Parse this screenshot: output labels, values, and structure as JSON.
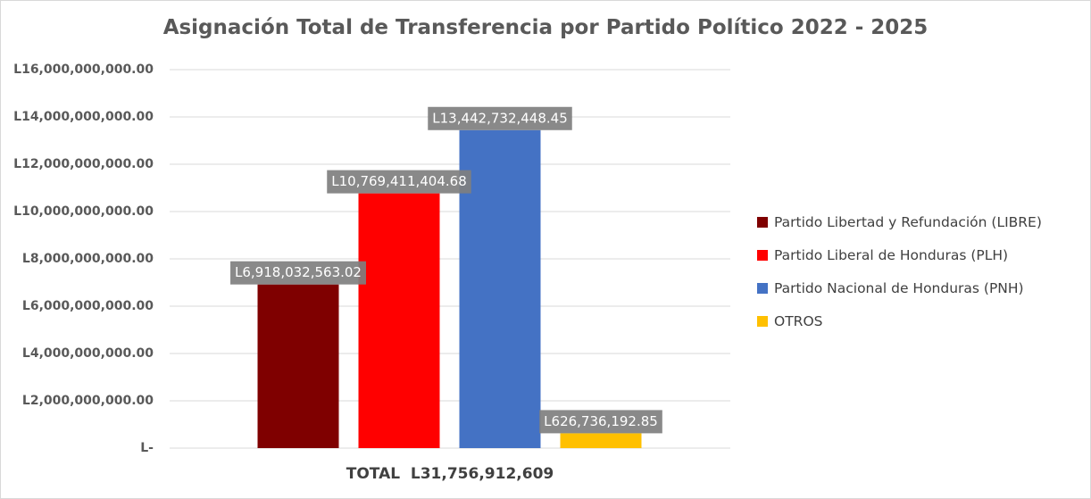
{
  "chart_data": {
    "type": "bar",
    "title": "Asignación Total de Transferencia por Partido Político 2022 -  2025",
    "xlabel": "TOTAL  L31,756,912,609",
    "ylabel": "",
    "ylim": [
      0,
      16000000000
    ],
    "grid": true,
    "legend_position": "right",
    "y_ticks": [
      {
        "value": 16000000000,
        "label": "L16,000,000,000.00"
      },
      {
        "value": 14000000000,
        "label": "L14,000,000,000.00"
      },
      {
        "value": 12000000000,
        "label": "L12,000,000,000.00"
      },
      {
        "value": 10000000000,
        "label": "L10,000,000,000.00"
      },
      {
        "value": 8000000000,
        "label": "L8,000,000,000.00"
      },
      {
        "value": 6000000000,
        "label": "L6,000,000,000.00"
      },
      {
        "value": 4000000000,
        "label": "L4,000,000,000.00"
      },
      {
        "value": 2000000000,
        "label": "L2,000,000,000.00"
      },
      {
        "value": 0,
        "label": "L-"
      }
    ],
    "series": [
      {
        "name": "Partido Libertad y Refundación (LIBRE)",
        "value": 6918032563.02,
        "label": "L6,918,032,563.02",
        "color": "#7f0000"
      },
      {
        "name": "Partido Liberal de Honduras (PLH)",
        "value": 10769411404.68,
        "label": "L10,769,411,404.68",
        "color": "#ff0000"
      },
      {
        "name": "Partido Nacional de Honduras (PNH)",
        "value": 13442732448.45,
        "label": "L13,442,732,448.45",
        "color": "#4472c4"
      },
      {
        "name": "OTROS",
        "value": 626736192.85,
        "label": "L626,736,192.85",
        "color": "#ffc000"
      }
    ]
  }
}
